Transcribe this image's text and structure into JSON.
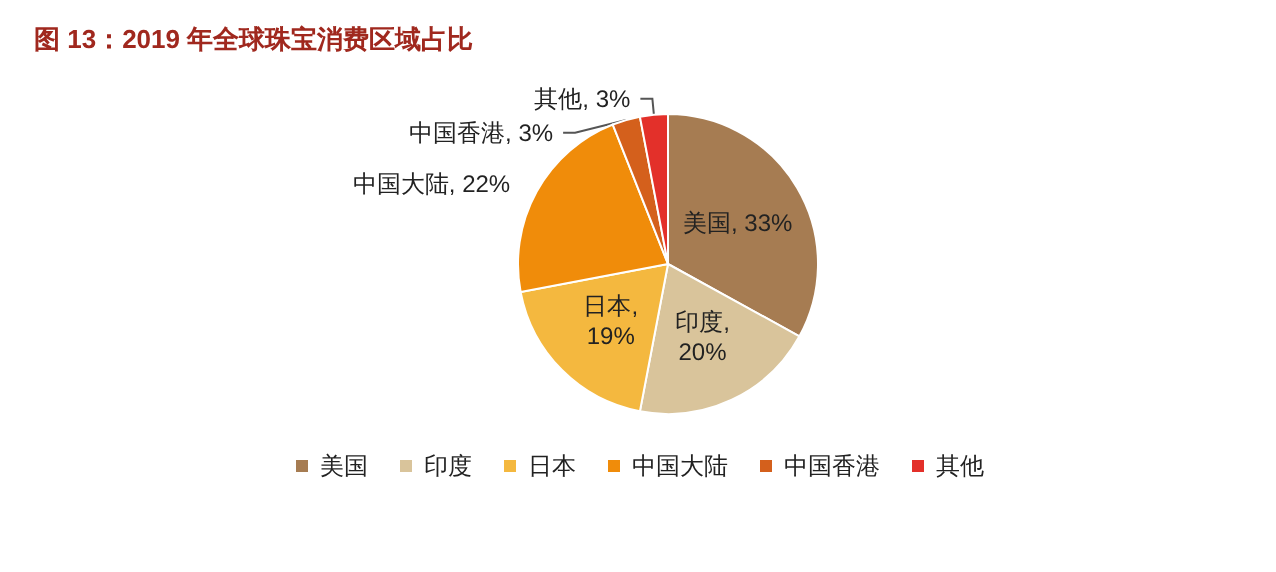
{
  "chart_data": {
    "type": "pie",
    "title": "图 13：2019 年全球珠宝消费区域占比",
    "categories": [
      "美国",
      "印度",
      "日本",
      "中国大陆",
      "中国香港",
      "其他"
    ],
    "values": [
      33,
      20,
      19,
      22,
      3,
      3
    ],
    "value_labels": [
      "美国, 33%",
      "印度, 20%",
      "日本, 19%",
      "中国大陆, 22%",
      "中国香港, 3%",
      "其他, 3%"
    ],
    "colors": [
      "#a67c52",
      "#d9c49b",
      "#f4b83f",
      "#f08c0a",
      "#d4601c",
      "#e3302a"
    ],
    "legend": "bottom"
  }
}
